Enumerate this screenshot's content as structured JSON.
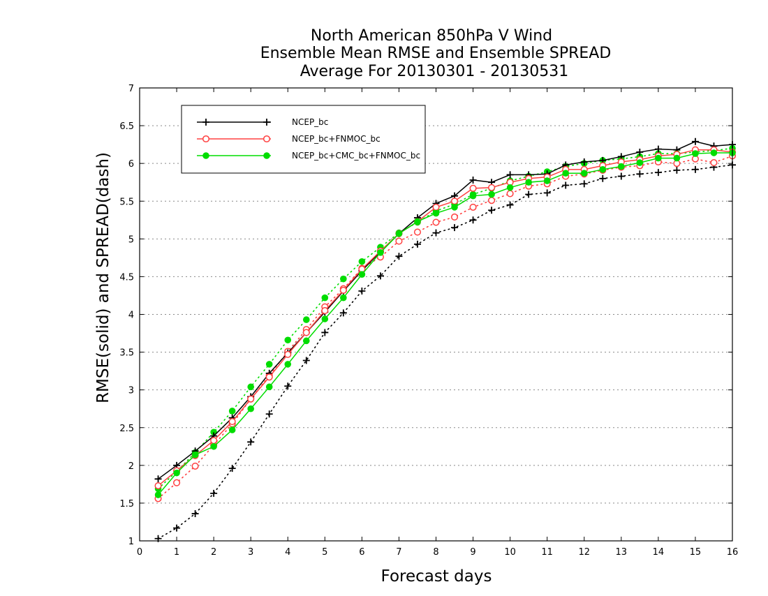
{
  "chart_data": {
    "type": "line",
    "title": [
      "North American 850hPa V Wind",
      "Ensemble Mean RMSE and Ensemble SPREAD",
      "Average For 20130301 - 20130531"
    ],
    "xlabel": "Forecast days",
    "ylabel": "RMSE(solid) and SPREAD(dash)",
    "xlim": [
      0,
      16
    ],
    "ylim": [
      1,
      7
    ],
    "xticks": [
      0,
      1,
      2,
      3,
      4,
      5,
      6,
      7,
      8,
      9,
      10,
      11,
      12,
      13,
      14,
      15,
      16
    ],
    "yticks": [
      1,
      1.5,
      2,
      2.5,
      3,
      3.5,
      4,
      4.5,
      5,
      5.5,
      6,
      6.5,
      7
    ],
    "ytick_labels": [
      "1",
      "1.5",
      "2",
      "2.5",
      "3",
      "3.5",
      "4",
      "4.5",
      "5",
      "5.5",
      "6",
      "6.5",
      "7"
    ],
    "grid": "horizontal dotted",
    "legend_position": "top-left",
    "x": [
      0.5,
      1,
      1.5,
      2,
      2.5,
      3,
      3.5,
      4,
      4.5,
      5,
      5.5,
      6,
      6.5,
      7,
      7.5,
      8,
      8.5,
      9,
      9.5,
      10,
      10.5,
      11,
      11.5,
      12,
      12.5,
      13,
      13.5,
      14,
      14.5,
      15,
      15.5,
      16
    ],
    "series": [
      {
        "name": "NCEP_bc",
        "color": "#000000",
        "marker": "plus",
        "rmse": [
          1.82,
          2.0,
          2.19,
          2.39,
          2.63,
          2.91,
          3.22,
          3.49,
          3.76,
          4.03,
          4.31,
          4.58,
          4.83,
          5.07,
          5.28,
          5.47,
          5.57,
          5.78,
          5.75,
          5.85,
          5.85,
          5.86,
          5.98,
          6.02,
          6.04,
          6.09,
          6.15,
          6.19,
          6.18,
          6.29,
          6.23,
          6.25
        ],
        "spread": [
          1.03,
          1.17,
          1.36,
          1.63,
          1.96,
          2.31,
          2.68,
          3.05,
          3.39,
          3.76,
          4.02,
          4.31,
          4.51,
          4.77,
          4.93,
          5.08,
          5.15,
          5.25,
          5.38,
          5.45,
          5.59,
          5.61,
          5.71,
          5.73,
          5.8,
          5.83,
          5.86,
          5.88,
          5.91,
          5.92,
          5.95,
          5.98
        ]
      },
      {
        "name": "NCEP_bc+FNMOC_bc",
        "color": "#ff4040",
        "marker": "open-circle",
        "rmse": [
          1.73,
          1.93,
          2.13,
          2.33,
          2.58,
          2.88,
          3.17,
          3.47,
          3.76,
          4.05,
          4.32,
          4.6,
          4.84,
          5.07,
          5.23,
          5.42,
          5.5,
          5.67,
          5.68,
          5.75,
          5.8,
          5.82,
          5.92,
          5.92,
          5.97,
          6.02,
          6.05,
          6.1,
          6.12,
          6.18,
          6.18,
          6.15
        ],
        "spread": [
          1.56,
          1.77,
          1.99,
          2.27,
          2.55,
          2.88,
          3.19,
          3.51,
          3.8,
          4.1,
          4.34,
          4.61,
          4.76,
          4.97,
          5.09,
          5.22,
          5.29,
          5.42,
          5.51,
          5.6,
          5.7,
          5.73,
          5.83,
          5.86,
          5.91,
          5.95,
          5.97,
          6.02,
          6.0,
          6.06,
          6.01,
          6.1
        ]
      },
      {
        "name": "NCEP_bc+CMC_bc+FNMOC_bc",
        "color": "#00dd00",
        "marker": "filled-circle",
        "rmse": [
          1.61,
          1.9,
          2.14,
          2.25,
          2.47,
          2.75,
          3.04,
          3.34,
          3.65,
          3.94,
          4.22,
          4.53,
          4.82,
          5.07,
          5.23,
          5.34,
          5.42,
          5.57,
          5.59,
          5.68,
          5.75,
          5.77,
          5.87,
          5.87,
          5.92,
          5.96,
          6.01,
          6.07,
          6.07,
          6.13,
          6.14,
          6.14
        ],
        "spread": [
          1.69,
          1.92,
          2.17,
          2.44,
          2.72,
          3.04,
          3.34,
          3.66,
          3.93,
          4.22,
          4.47,
          4.7,
          4.89,
          5.08,
          5.22,
          5.37,
          5.46,
          5.59,
          5.67,
          5.77,
          5.83,
          5.89,
          5.96,
          6.0,
          6.04,
          6.06,
          6.09,
          6.13,
          6.13,
          6.15,
          6.17,
          6.2
        ]
      }
    ]
  }
}
